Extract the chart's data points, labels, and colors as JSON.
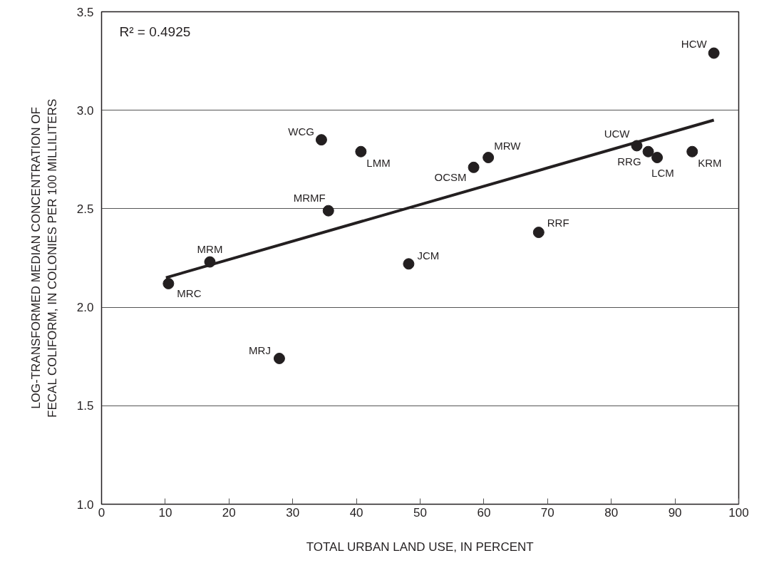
{
  "chart_data": {
    "type": "scatter",
    "xlabel": "TOTAL URBAN LAND USE, IN PERCENT",
    "ylabel": "LOG-TRANSFORMED MEDIAN CONCENTRATION OF\nFECAL COLIFORM, IN COLONIES PER 100 MILLILITERS",
    "xlim": [
      0,
      100
    ],
    "ylim": [
      1.0,
      3.5
    ],
    "xticks": [
      0,
      10,
      20,
      30,
      40,
      50,
      60,
      70,
      80,
      90,
      100
    ],
    "yticks": [
      {
        "value": 1.0,
        "label": "1.0"
      },
      {
        "value": 1.5,
        "label": "1.5"
      },
      {
        "value": 2.0,
        "label": "2.0"
      },
      {
        "value": 2.5,
        "label": "2.5"
      },
      {
        "value": 3.0,
        "label": "3.0"
      },
      {
        "value": 3.5,
        "label": "3.5"
      }
    ],
    "grid": "y",
    "series": [
      {
        "marker": "circle",
        "color": "#231f20",
        "x": [
          10.5,
          17.0,
          27.9,
          34.5,
          35.6,
          40.7,
          48.2,
          58.4,
          60.7,
          68.6,
          84.0,
          85.8,
          87.2,
          96.1,
          92.7
        ],
        "values": [
          2.12,
          2.23,
          1.74,
          2.85,
          2.49,
          2.79,
          2.22,
          2.71,
          2.76,
          2.38,
          2.82,
          2.79,
          2.76,
          3.29,
          2.79
        ]
      },
      {
        "type": "line",
        "color": "#231f20",
        "x": [
          10.1,
          96.1
        ],
        "values": [
          2.15,
          2.95
        ]
      }
    ],
    "annotations": [
      "R² = 0.4925",
      {
        "text": "MRC",
        "x": 10.5,
        "y": 2.12
      },
      {
        "text": "MRM",
        "x": 17.0,
        "y": 2.23
      },
      {
        "text": "MRJ",
        "x": 27.9,
        "y": 1.74
      },
      {
        "text": "WCG",
        "x": 34.5,
        "y": 2.85
      },
      {
        "text": "MRMF",
        "x": 35.6,
        "y": 2.49
      },
      {
        "text": "LMM",
        "x": 40.7,
        "y": 2.79
      },
      {
        "text": "JCM",
        "x": 48.2,
        "y": 2.22
      },
      {
        "text": "OCSM",
        "x": 58.4,
        "y": 2.71
      },
      {
        "text": "MRW",
        "x": 60.7,
        "y": 2.76
      },
      {
        "text": "RRF",
        "x": 68.6,
        "y": 2.38
      },
      {
        "text": "UCW",
        "x": 84.0,
        "y": 2.82
      },
      {
        "text": "RRG",
        "x": 85.8,
        "y": 2.79
      },
      {
        "text": "LCM",
        "x": 87.2,
        "y": 2.76
      },
      {
        "text": "HCW",
        "x": 96.1,
        "y": 3.29
      },
      {
        "text": "KRM",
        "x": 92.7,
        "y": 2.79
      }
    ]
  }
}
